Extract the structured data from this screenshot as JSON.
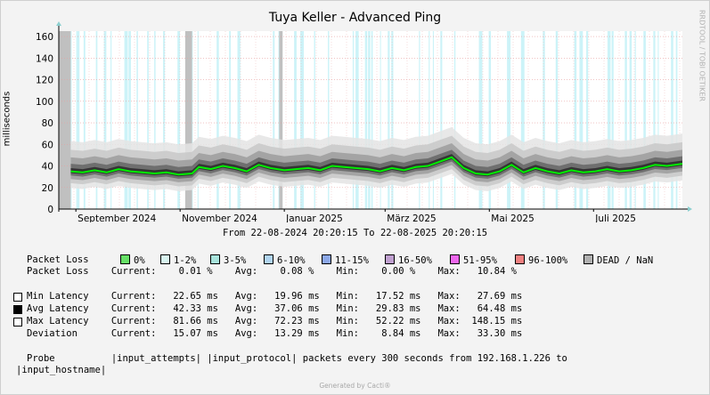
{
  "title": "Tuya Keller - Advanced Ping",
  "watermark": "RRDTOOL / TOBI OETIKER",
  "date_range": "From 22-08-2024 20:20:15 To 22-08-2025 20:20:15",
  "footer": "Generated by Cacti®",
  "colors": {
    "latency": "#00f000",
    "band_dark": "#2a2a2a",
    "band_light": "#cfcfcf",
    "loss_bars": "#bff0f6",
    "dead": "#c0c0c0",
    "grid": "#e8a0a0"
  },
  "chart_data": {
    "type": "area",
    "title": "Tuya Keller - Advanced Ping",
    "ylabel": "milliseconds",
    "ylim": [
      0,
      165
    ],
    "yticks": [
      0,
      20,
      40,
      60,
      80,
      100,
      120,
      140,
      160
    ],
    "xlim": [
      "2024-08-22",
      "2025-08-22"
    ],
    "xticks": [
      {
        "label": "September 2024",
        "date": "2024-09-01"
      },
      {
        "label": "November 2024",
        "date": "2024-11-01"
      },
      {
        "label": "Januar 2025",
        "date": "2025-01-01"
      },
      {
        "label": "März 2025",
        "date": "2025-03-01"
      },
      {
        "label": "Mai 2025",
        "date": "2025-05-01"
      },
      {
        "label": "Juli 2025",
        "date": "2025-07-01"
      }
    ],
    "dead_periods": [
      [
        "2024-08-22",
        "2024-08-29"
      ],
      [
        "2024-11-04",
        "2024-11-08"
      ],
      [
        "2024-12-29",
        "2024-12-31"
      ]
    ],
    "series": [
      {
        "name": "Avg Latency",
        "x": [
          "2024-08-29",
          "2024-09-05",
          "2024-09-12",
          "2024-09-19",
          "2024-09-26",
          "2024-10-03",
          "2024-10-10",
          "2024-10-17",
          "2024-10-24",
          "2024-10-31",
          "2024-11-08",
          "2024-11-12",
          "2024-11-19",
          "2024-11-26",
          "2024-12-03",
          "2024-12-10",
          "2024-12-17",
          "2024-12-24",
          "2025-01-01",
          "2025-01-08",
          "2025-01-15",
          "2025-01-22",
          "2025-01-29",
          "2025-02-05",
          "2025-02-12",
          "2025-02-19",
          "2025-02-26",
          "2025-03-05",
          "2025-03-12",
          "2025-03-19",
          "2025-03-26",
          "2025-04-02",
          "2025-04-09",
          "2025-04-16",
          "2025-04-23",
          "2025-04-30",
          "2025-05-07",
          "2025-05-14",
          "2025-05-21",
          "2025-05-28",
          "2025-06-04",
          "2025-06-11",
          "2025-06-18",
          "2025-06-25",
          "2025-07-02",
          "2025-07-09",
          "2025-07-16",
          "2025-07-23",
          "2025-07-30",
          "2025-08-06",
          "2025-08-13",
          "2025-08-22"
        ],
        "values": [
          35,
          34,
          36,
          34,
          37,
          35,
          34,
          33,
          34,
          32,
          33,
          39,
          37,
          40,
          38,
          35,
          41,
          38,
          36,
          37,
          38,
          36,
          40,
          39,
          38,
          37,
          35,
          38,
          36,
          39,
          40,
          44,
          48,
          38,
          33,
          32,
          35,
          41,
          34,
          38,
          35,
          33,
          36,
          34,
          35,
          37,
          35,
          36,
          38,
          41,
          40,
          42
        ]
      }
    ]
  },
  "legend": {
    "packet_loss_label": "Packet Loss",
    "items": [
      {
        "label": "0%",
        "color": "#66e066"
      },
      {
        "label": "1-2%",
        "color": "#d8f4f0"
      },
      {
        "label": "3-5%",
        "color": "#a8e4dc"
      },
      {
        "label": "6-10%",
        "color": "#b0d4f0"
      },
      {
        "label": "11-15%",
        "color": "#8ca8e8"
      },
      {
        "label": "16-50%",
        "color": "#c0a0d0"
      },
      {
        "label": "51-95%",
        "color": "#ee66ee"
      },
      {
        "label": "96-100%",
        "color": "#f08080"
      },
      {
        "label": "DEAD / NaN",
        "color": "#b0b0b0"
      }
    ]
  },
  "stats": {
    "packet_loss": "Packet Loss    Current:    0.01 %    Avg:    0.08 %    Min:    0.00 %    Max:   10.84 %",
    "min_latency": "Min Latency    Current:   22.65 ms   Avg:   19.96 ms   Min:   17.52 ms   Max:   27.69 ms",
    "avg_latency": "Avg Latency    Current:   42.33 ms   Avg:   37.06 ms   Min:   29.83 ms   Max:   64.48 ms",
    "max_latency": "Max Latency    Current:   81.66 ms   Avg:   72.23 ms   Min:   52.22 ms   Max:  148.15 ms",
    "deviation": "Deviation      Current:   15.07 ms   Avg:   13.29 ms   Min:    8.84 ms   Max:   33.30 ms",
    "probe1": "Probe          |input_attempts| |input_protocol| packets every 300 seconds from 192.168.1.226 to",
    "probe2": "|input_hostname|"
  }
}
